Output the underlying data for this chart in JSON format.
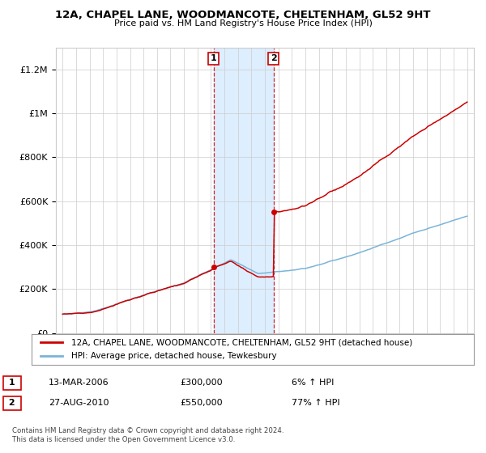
{
  "title": "12A, CHAPEL LANE, WOODMANCOTE, CHELTENHAM, GL52 9HT",
  "subtitle": "Price paid vs. HM Land Registry's House Price Index (HPI)",
  "ylabel_ticks": [
    "£0",
    "£200K",
    "£400K",
    "£600K",
    "£800K",
    "£1M",
    "£1.2M"
  ],
  "ytick_values": [
    0,
    200000,
    400000,
    600000,
    800000,
    1000000,
    1200000
  ],
  "ylim": [
    0,
    1300000
  ],
  "xlim_start": 1995,
  "xlim_end": 2025,
  "transaction1": {
    "date_x": 2006.2,
    "price": 300000,
    "label": "1",
    "date_str": "13-MAR-2006",
    "price_str": "£300,000",
    "pct": "6% ↑ HPI"
  },
  "transaction2": {
    "date_x": 2010.65,
    "price": 550000,
    "label": "2",
    "date_str": "27-AUG-2010",
    "price_str": "£550,000",
    "pct": "77% ↑ HPI"
  },
  "legend_line1": "12A, CHAPEL LANE, WOODMANCOTE, CHELTENHAM, GL52 9HT (detached house)",
  "legend_line2": "HPI: Average price, detached house, Tewkesbury",
  "footer1": "Contains HM Land Registry data © Crown copyright and database right 2024.",
  "footer2": "This data is licensed under the Open Government Licence v3.0.",
  "hpi_color": "#7ab4d8",
  "price_color": "#cc0000",
  "highlight_bg": "#ddeeff",
  "transaction_vline_color": "#cc0000",
  "grid_color": "#cccccc",
  "background_color": "#ffffff"
}
